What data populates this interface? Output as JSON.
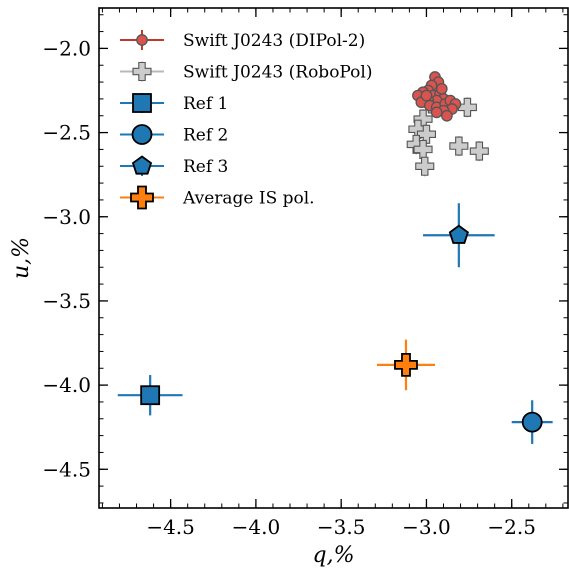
{
  "chart_data": {
    "type": "scatter",
    "xlabel": "q,%",
    "ylabel": "u,%",
    "xlim": [
      -4.92,
      -2.17
    ],
    "ylim": [
      -4.73,
      -1.76
    ],
    "x_ticks": [
      {
        "value": -4.5,
        "label": "−4.5"
      },
      {
        "value": -4.0,
        "label": "−4.0"
      },
      {
        "value": -3.5,
        "label": "−3.5"
      },
      {
        "value": -3.0,
        "label": "−3.0"
      },
      {
        "value": -2.5,
        "label": "−2.5"
      }
    ],
    "y_ticks": [
      {
        "value": -2.0,
        "label": "−2.0"
      },
      {
        "value": -2.5,
        "label": "−2.5"
      },
      {
        "value": -3.0,
        "label": "−3.0"
      },
      {
        "value": -3.5,
        "label": "−3.5"
      },
      {
        "value": -4.0,
        "label": "−4.0"
      },
      {
        "value": -4.5,
        "label": "−4.5"
      }
    ],
    "legend_position": "top-left",
    "series": [
      {
        "name": "Swift J0243 (DIPol-2)",
        "marker": "circle-small",
        "color": "#d9534f",
        "edge": "#555555",
        "points": [
          {
            "x": -2.95,
            "y": -2.17,
            "xerr": 0.015,
            "yerr": 0.02
          },
          {
            "x": -2.93,
            "y": -2.2,
            "xerr": 0.015,
            "yerr": 0.02
          },
          {
            "x": -2.97,
            "y": -2.22,
            "xerr": 0.015,
            "yerr": 0.02
          },
          {
            "x": -2.99,
            "y": -2.25,
            "xerr": 0.015,
            "yerr": 0.02
          },
          {
            "x": -3.02,
            "y": -2.26,
            "xerr": 0.015,
            "yerr": 0.02
          },
          {
            "x": -3.05,
            "y": -2.28,
            "xerr": 0.015,
            "yerr": 0.02
          },
          {
            "x": -2.96,
            "y": -2.28,
            "xerr": 0.015,
            "yerr": 0.02
          },
          {
            "x": -2.92,
            "y": -2.27,
            "xerr": 0.015,
            "yerr": 0.02
          },
          {
            "x": -2.9,
            "y": -2.3,
            "xerr": 0.015,
            "yerr": 0.02
          },
          {
            "x": -2.94,
            "y": -2.31,
            "xerr": 0.015,
            "yerr": 0.02
          },
          {
            "x": -2.99,
            "y": -2.31,
            "xerr": 0.015,
            "yerr": 0.02
          },
          {
            "x": -3.03,
            "y": -2.32,
            "xerr": 0.015,
            "yerr": 0.02
          },
          {
            "x": -2.98,
            "y": -2.34,
            "xerr": 0.015,
            "yerr": 0.02
          },
          {
            "x": -2.94,
            "y": -2.35,
            "xerr": 0.015,
            "yerr": 0.02
          },
          {
            "x": -2.89,
            "y": -2.33,
            "xerr": 0.015,
            "yerr": 0.02
          },
          {
            "x": -2.86,
            "y": -2.31,
            "xerr": 0.015,
            "yerr": 0.02
          },
          {
            "x": -2.83,
            "y": -2.33,
            "xerr": 0.015,
            "yerr": 0.02
          },
          {
            "x": -2.85,
            "y": -2.36,
            "xerr": 0.015,
            "yerr": 0.02
          },
          {
            "x": -2.9,
            "y": -2.37,
            "xerr": 0.015,
            "yerr": 0.02
          },
          {
            "x": -2.88,
            "y": -2.4,
            "xerr": 0.015,
            "yerr": 0.02
          },
          {
            "x": -2.94,
            "y": -2.38,
            "xerr": 0.015,
            "yerr": 0.02
          },
          {
            "x": -2.91,
            "y": -2.24,
            "xerr": 0.015,
            "yerr": 0.02
          },
          {
            "x": -3.0,
            "y": -2.28,
            "xerr": 0.015,
            "yerr": 0.02
          }
        ]
      },
      {
        "name": "Swift J0243 (RoboPol)",
        "marker": "plus-thick",
        "color": "#cccccc",
        "edge": "#555555",
        "points": [
          {
            "x": -2.97,
            "y": -2.33,
            "xerr": 0.05,
            "yerr": 0.06
          },
          {
            "x": -3.02,
            "y": -2.42,
            "xerr": 0.05,
            "yerr": 0.06
          },
          {
            "x": -3.05,
            "y": -2.48,
            "xerr": 0.05,
            "yerr": 0.06
          },
          {
            "x": -3.0,
            "y": -2.51,
            "xerr": 0.05,
            "yerr": 0.06
          },
          {
            "x": -3.06,
            "y": -2.57,
            "xerr": 0.05,
            "yerr": 0.06
          },
          {
            "x": -3.02,
            "y": -2.6,
            "xerr": 0.05,
            "yerr": 0.06
          },
          {
            "x": -3.01,
            "y": -2.7,
            "xerr": 0.05,
            "yerr": 0.06
          },
          {
            "x": -2.81,
            "y": -2.58,
            "xerr": 0.05,
            "yerr": 0.06
          },
          {
            "x": -2.69,
            "y": -2.61,
            "xerr": 0.05,
            "yerr": 0.06
          },
          {
            "x": -2.76,
            "y": -2.35,
            "xerr": 0.05,
            "yerr": 0.06
          }
        ]
      },
      {
        "name": "Ref 1",
        "marker": "square",
        "color": "#1f77b4",
        "edge": "#000000",
        "points": [
          {
            "x": -4.62,
            "y": -4.06,
            "xerr": 0.19,
            "yerr": 0.12
          }
        ]
      },
      {
        "name": "Ref 2",
        "marker": "circle",
        "color": "#1f77b4",
        "edge": "#000000",
        "points": [
          {
            "x": -2.38,
            "y": -4.22,
            "xerr": 0.12,
            "yerr": 0.13
          }
        ]
      },
      {
        "name": "Ref 3",
        "marker": "pentagon",
        "color": "#1f77b4",
        "edge": "#000000",
        "points": [
          {
            "x": -2.81,
            "y": -3.11,
            "xerr": 0.21,
            "yerr": 0.19
          }
        ]
      },
      {
        "name": "Average IS pol.",
        "marker": "plus-big",
        "color": "#ff7f0e",
        "edge": "#000000",
        "points": [
          {
            "x": -3.12,
            "y": -3.88,
            "xerr": 0.17,
            "yerr": 0.15
          }
        ]
      }
    ]
  }
}
